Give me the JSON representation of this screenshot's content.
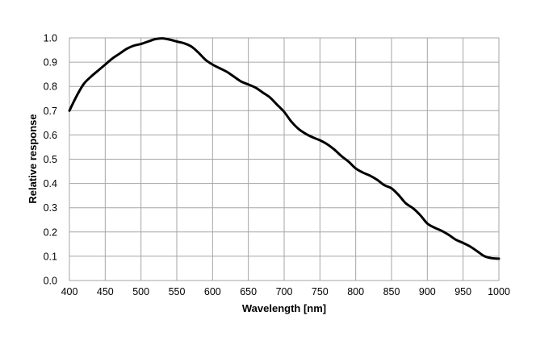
{
  "chart_data": {
    "type": "line",
    "xlabel": "Wavelength [nm]",
    "ylabel": "Relative response",
    "xlim": [
      400,
      1000
    ],
    "ylim": [
      0,
      1.0
    ],
    "x_ticks": [
      "400",
      "450",
      "500",
      "550",
      "600",
      "650",
      "700",
      "750",
      "800",
      "850",
      "900",
      "950",
      "1000"
    ],
    "y_ticks": [
      "0.0",
      "0.1",
      "0.2",
      "0.3",
      "0.4",
      "0.5",
      "0.6",
      "0.7",
      "0.8",
      "0.9",
      "1.0"
    ],
    "grid": true,
    "legend": "none",
    "line_color": "#000000",
    "grid_color": "#a6a6a6",
    "series": [
      {
        "x": [
          400,
          410,
          420,
          430,
          440,
          450,
          460,
          470,
          480,
          490,
          500,
          510,
          520,
          530,
          540,
          550,
          560,
          570,
          580,
          590,
          600,
          610,
          620,
          630,
          640,
          650,
          660,
          670,
          680,
          690,
          700,
          710,
          720,
          730,
          740,
          750,
          760,
          770,
          780,
          790,
          800,
          810,
          820,
          830,
          840,
          850,
          860,
          870,
          880,
          890,
          900,
          910,
          920,
          930,
          940,
          950,
          960,
          970,
          980,
          990,
          1000
        ],
        "y": [
          0.7,
          0.76,
          0.81,
          0.84,
          0.865,
          0.89,
          0.915,
          0.935,
          0.955,
          0.968,
          0.975,
          0.985,
          0.995,
          0.998,
          0.993,
          0.985,
          0.978,
          0.965,
          0.94,
          0.91,
          0.89,
          0.875,
          0.86,
          0.84,
          0.82,
          0.808,
          0.795,
          0.775,
          0.755,
          0.725,
          0.695,
          0.655,
          0.625,
          0.605,
          0.59,
          0.578,
          0.562,
          0.54,
          0.513,
          0.49,
          0.462,
          0.445,
          0.432,
          0.415,
          0.393,
          0.38,
          0.352,
          0.318,
          0.298,
          0.27,
          0.235,
          0.218,
          0.205,
          0.188,
          0.168,
          0.155,
          0.14,
          0.12,
          0.1,
          0.092,
          0.09
        ]
      }
    ]
  }
}
